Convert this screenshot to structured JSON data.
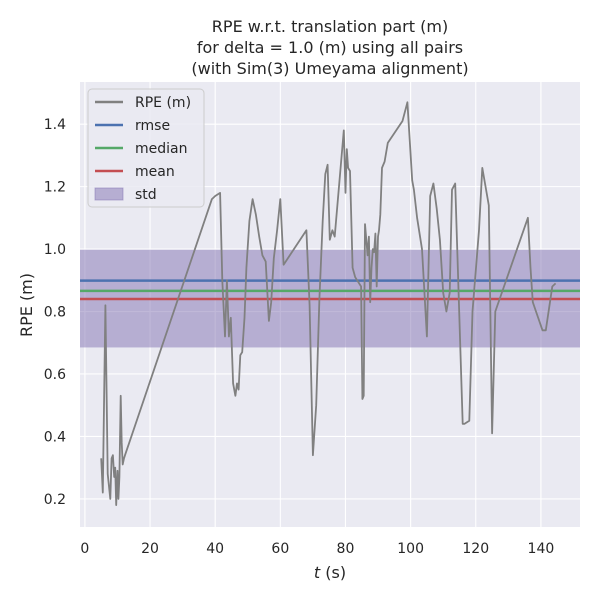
{
  "chart_data": {
    "type": "line",
    "title_lines": [
      "RPE w.r.t. translation part (m)",
      "for delta = 1.0 (m) using all pairs",
      "(with Sim(3) Umeyama alignment)"
    ],
    "xlabel_italic": "t",
    "xlabel_rest": " (s)",
    "ylabel": "RPE (m)",
    "xlim": [
      -1.5,
      152
    ],
    "ylim": [
      0.11,
      1.535
    ],
    "xticks": [
      0,
      20,
      40,
      60,
      80,
      100,
      120,
      140
    ],
    "yticks": [
      0.2,
      0.4,
      0.6,
      0.8,
      1.0,
      1.2,
      1.4
    ],
    "ytick_labels": [
      "0.2",
      "0.4",
      "0.6",
      "0.8",
      "1.0",
      "1.2",
      "1.4"
    ],
    "grid": true,
    "legend_position": "top-left",
    "legend": [
      {
        "label": "RPE (m)",
        "kind": "line",
        "color": "#808080"
      },
      {
        "label": "rmse",
        "kind": "line",
        "color": "#4c72b0"
      },
      {
        "label": "median",
        "kind": "line",
        "color": "#55a868"
      },
      {
        "label": "mean",
        "kind": "line",
        "color": "#c44e52"
      },
      {
        "label": "std",
        "kind": "patch",
        "color": "#8172b2"
      }
    ],
    "stats": {
      "rmse": 0.899,
      "median": 0.866,
      "mean": 0.84,
      "std_low": 0.685,
      "std_high": 0.998
    },
    "series": [
      {
        "name": "RPE (m)",
        "color": "#808080",
        "x": [
          5,
          5.5,
          6.3,
          7,
          7.8,
          8.2,
          8.6,
          9,
          9.3,
          9.6,
          10,
          10.3,
          10.6,
          11,
          11.3,
          11.6,
          12,
          12.3,
          39,
          40,
          41.5,
          42.2,
          43,
          43.6,
          44.2,
          44.8,
          45.5,
          46.2,
          46.7,
          47.2,
          47.7,
          48.3,
          49,
          49.6,
          50.5,
          51.5,
          52.5,
          53.5,
          54.5,
          55.5,
          56.5,
          57.2,
          58,
          59,
          60,
          61,
          68,
          69,
          70,
          71,
          72,
          73,
          73.8,
          74.5,
          75.2,
          76,
          76.7,
          79.5,
          80,
          80.4,
          80.8,
          81.4,
          82.2,
          83,
          84.8,
          85.2,
          85.6,
          86,
          86.4,
          86.8,
          87.2,
          87.6,
          88,
          88.4,
          88.8,
          89.2,
          89.6,
          90,
          90.3,
          90.7,
          91.2,
          92,
          93,
          97.5,
          99,
          100.5,
          101,
          102,
          103.5,
          105,
          106,
          107,
          108,
          109,
          110,
          111,
          112,
          112.7,
          113.7,
          114.7,
          116,
          116.5,
          118,
          119,
          121,
          122,
          124,
          125,
          126,
          136,
          136.8,
          137.5,
          138.5,
          140.5,
          141.5,
          143.5,
          144.5
        ],
        "y": [
          0.33,
          0.22,
          0.82,
          0.28,
          0.2,
          0.33,
          0.34,
          0.27,
          0.3,
          0.18,
          0.29,
          0.2,
          0.27,
          0.53,
          0.38,
          0.31,
          0.33,
          0.34,
          1.16,
          1.17,
          1.18,
          0.9,
          0.72,
          0.9,
          0.72,
          0.78,
          0.57,
          0.53,
          0.57,
          0.55,
          0.66,
          0.67,
          0.78,
          0.94,
          1.09,
          1.16,
          1.11,
          1.04,
          0.98,
          0.96,
          0.77,
          0.83,
          0.97,
          1.06,
          1.16,
          0.95,
          1.06,
          0.82,
          0.34,
          0.5,
          0.84,
          1.09,
          1.24,
          1.27,
          1.03,
          1.06,
          1.04,
          1.38,
          1.18,
          1.32,
          1.26,
          1.25,
          0.94,
          0.91,
          0.88,
          0.52,
          0.53,
          1.08,
          1.03,
          0.98,
          1.04,
          0.83,
          0.94,
          1.0,
          0.99,
          1.05,
          0.88,
          1.04,
          1.06,
          1.11,
          1.26,
          1.28,
          1.34,
          1.41,
          1.47,
          1.22,
          1.19,
          1.1,
          1.0,
          0.72,
          1.17,
          1.21,
          1.13,
          1.03,
          0.86,
          0.8,
          0.86,
          1.19,
          1.21,
          0.87,
          0.44,
          0.44,
          0.45,
          0.8,
          1.06,
          1.26,
          1.14,
          0.41,
          0.8,
          1.1,
          0.94,
          0.83,
          0.8,
          0.74,
          0.74,
          0.88,
          0.89
        ]
      }
    ]
  }
}
